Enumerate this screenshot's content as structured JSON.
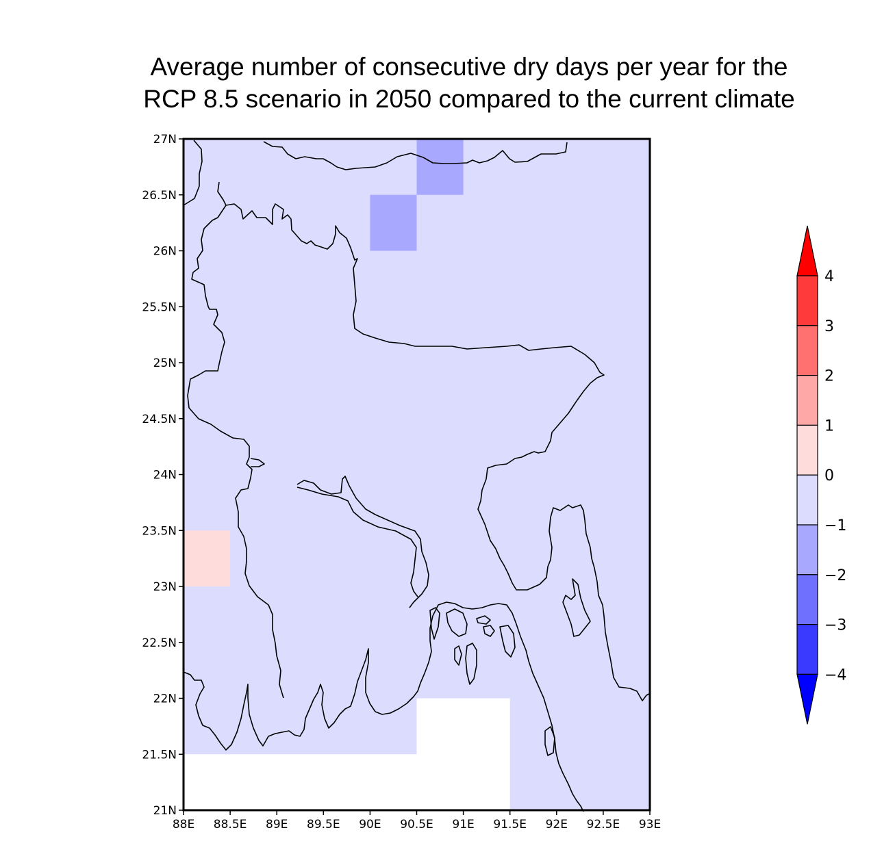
{
  "title": {
    "line1": "Average number of consecutive dry days per year for the",
    "line2": "RCP 8.5 scenario in 2050 compared to the current climate"
  },
  "map": {
    "extent": {
      "lon": [
        88,
        93
      ],
      "lat": [
        21,
        27
      ]
    },
    "lat_ticks": [
      "27N",
      "26.5N",
      "26N",
      "25.5N",
      "25N",
      "24.5N",
      "24N",
      "23.5N",
      "23N",
      "22.5N",
      "22N",
      "21.5N",
      "21N"
    ],
    "lon_ticks": [
      "88E",
      "88.5E",
      "89E",
      "89.5E",
      "90E",
      "90.5E",
      "91E",
      "91.5E",
      "92E",
      "92.5E",
      "93E"
    ],
    "background_class": "-1 to 0",
    "cells": [
      {
        "lon": [
          90.5,
          91.0
        ],
        "lat": [
          26.5,
          27.0
        ],
        "class": "-2 to -1"
      },
      {
        "lon": [
          90.0,
          90.5
        ],
        "lat": [
          26.0,
          26.5
        ],
        "class": "-2 to -1"
      },
      {
        "lon": [
          88.0,
          88.5
        ],
        "lat": [
          23.0,
          23.5
        ],
        "class": "0 to 1"
      },
      {
        "lon": [
          88.0,
          90.5
        ],
        "lat": [
          21.0,
          21.5
        ],
        "class": "no data"
      },
      {
        "lon": [
          90.5,
          91.5
        ],
        "lat": [
          21.0,
          22.0
        ],
        "class": "no data"
      }
    ]
  },
  "colorbar": {
    "labels": [
      "4",
      "3",
      "2",
      "1",
      "0",
      "−1",
      "−2",
      "−3",
      "−4"
    ],
    "colors": [
      "#ff3a3a",
      "#ff7070",
      "#ffa8a8",
      "#ffdcdc",
      "#dcdcff",
      "#a8a8ff",
      "#7070ff",
      "#3a3aff"
    ],
    "low_arrow": "#0000ff",
    "high_arrow": "#ff0000"
  },
  "colors": {
    "-1 to 0": "#dcdcff",
    "-2 to -1": "#a8a8ff",
    "0 to 1": "#ffdcdc",
    "no data": "#ffffff"
  }
}
